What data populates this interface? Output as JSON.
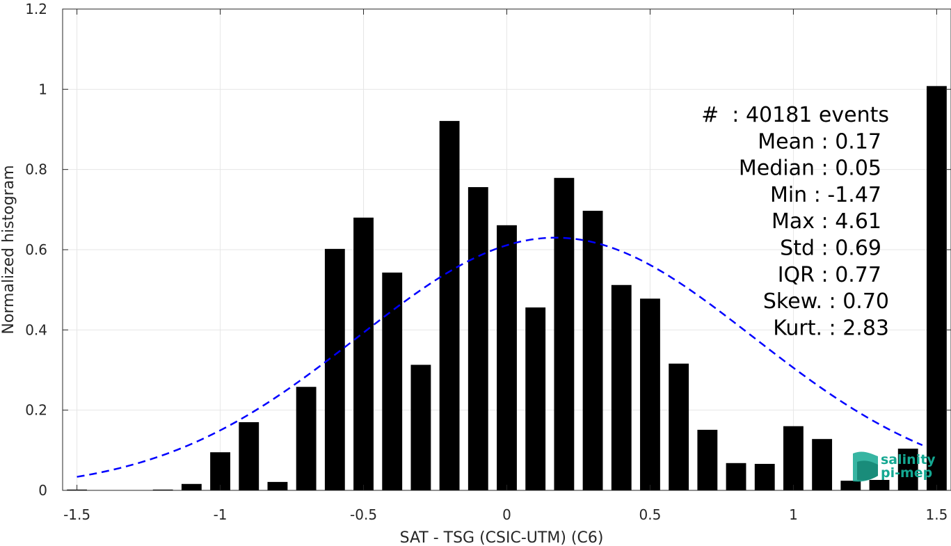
{
  "chart_data": {
    "type": "bar",
    "xlabel": "SAT - TSG (CSIC-UTM) (C6)",
    "ylabel": "Normalized histogram",
    "xlim": [
      -1.55,
      1.55
    ],
    "ylim": [
      0,
      1.2
    ],
    "xticks": [
      -1.5,
      -1,
      -0.5,
      0,
      0.5,
      1,
      1.5
    ],
    "xtick_labels": [
      "-1.5",
      "-1",
      "-0.5",
      "0",
      "0.5",
      "1",
      "1.5"
    ],
    "yticks": [
      0,
      0.2,
      0.4,
      0.6,
      0.8,
      1,
      1.2
    ],
    "ytick_labels": [
      "0",
      "0.2",
      "0.4",
      "0.6",
      "0.8",
      "1",
      "1.2"
    ],
    "grid": true,
    "bar_width": 0.07,
    "bars": {
      "x": [
        -1.5,
        -1.4,
        -1.3,
        -1.2,
        -1.1,
        -1.0,
        -0.9,
        -0.8,
        -0.7,
        -0.6,
        -0.5,
        -0.4,
        -0.3,
        -0.2,
        -0.1,
        0.0,
        0.1,
        0.2,
        0.3,
        0.4,
        0.5,
        0.6,
        0.7,
        0.8,
        0.9,
        1.0,
        1.1,
        1.2,
        1.3,
        1.4,
        1.5
      ],
      "values": [
        0.002,
        0.0,
        0.0,
        0.002,
        0.016,
        0.095,
        0.17,
        0.021,
        0.258,
        0.602,
        0.68,
        0.543,
        0.313,
        0.921,
        0.756,
        0.661,
        0.456,
        0.779,
        0.697,
        0.512,
        0.478,
        0.316,
        0.151,
        0.068,
        0.066,
        0.16,
        0.128,
        0.024,
        0.026,
        0.104,
        1.008
      ],
      "color": "#000000"
    },
    "fit": {
      "type": "gaussian",
      "mean": 0.17,
      "std": 0.69,
      "amplitude": 0.63,
      "x_range": [
        -1.5,
        1.45
      ],
      "color": "#0000ff",
      "style": "dashed"
    },
    "stats": [
      "#  : 40181 events",
      "Mean : 0.17",
      "Median : 0.05",
      "Min : -1.47",
      "Max : 4.61",
      "Std : 0.69",
      "IQR : 0.77",
      "Skew. : 0.70",
      "Kurt. : 2.83"
    ]
  },
  "logo": {
    "line1": "salinity",
    "line2": "pi-mep",
    "color": "#14a892"
  }
}
